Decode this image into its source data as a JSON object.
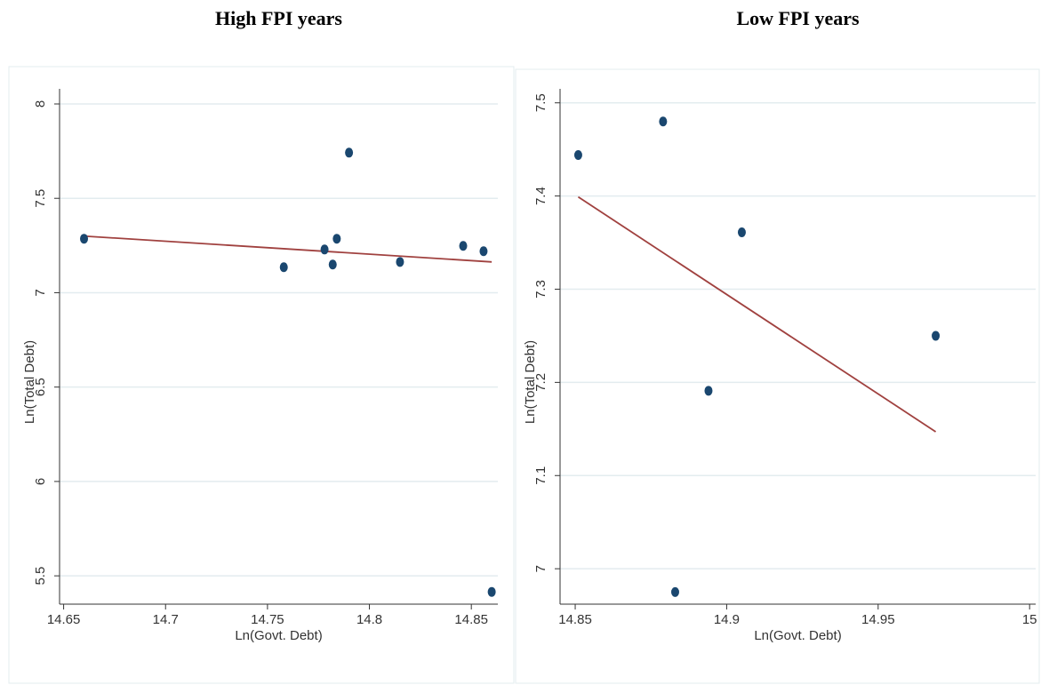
{
  "chart_data": [
    {
      "type": "scatter",
      "title": "High FPI years",
      "xlabel": "Ln(Govt. Debt)",
      "ylabel": "Ln(Total Debt)",
      "xlim": [
        14.648,
        14.863
      ],
      "ylim": [
        5.35,
        8.08
      ],
      "xticks": [
        14.65,
        14.7,
        14.75,
        14.8,
        14.85
      ],
      "yticks": [
        5.5,
        6,
        6.5,
        7,
        7.5,
        8
      ],
      "grid": true,
      "points": {
        "color": "#1a476f",
        "x": [
          14.66,
          14.758,
          14.778,
          14.782,
          14.784,
          14.79,
          14.815,
          14.846,
          14.856,
          14.86
        ],
        "y": [
          7.286,
          7.135,
          7.229,
          7.149,
          7.286,
          7.742,
          7.163,
          7.248,
          7.22,
          5.415
        ]
      },
      "fit": {
        "color": "#a0413f",
        "x": [
          14.66,
          14.86
        ],
        "y": [
          7.3,
          7.163
        ]
      }
    },
    {
      "type": "scatter",
      "title": "Low FPI years",
      "xlabel": "Ln(Govt. Debt)",
      "ylabel": "Ln(Total Debt)",
      "xlim": [
        14.845,
        15.002
      ],
      "ylim": [
        6.962,
        7.515
      ],
      "xticks": [
        14.85,
        14.9,
        14.95,
        15
      ],
      "yticks": [
        7,
        7.1,
        7.2,
        7.3,
        7.4,
        7.5
      ],
      "grid": true,
      "points": {
        "color": "#1a476f",
        "x": [
          14.851,
          14.879,
          14.905,
          14.894,
          14.969,
          14.883
        ],
        "y": [
          7.444,
          7.48,
          7.361,
          7.191,
          7.25,
          6.975
        ]
      },
      "fit": {
        "color": "#a0413f",
        "x": [
          14.851,
          14.969
        ],
        "y": [
          7.399,
          7.147
        ]
      }
    }
  ]
}
